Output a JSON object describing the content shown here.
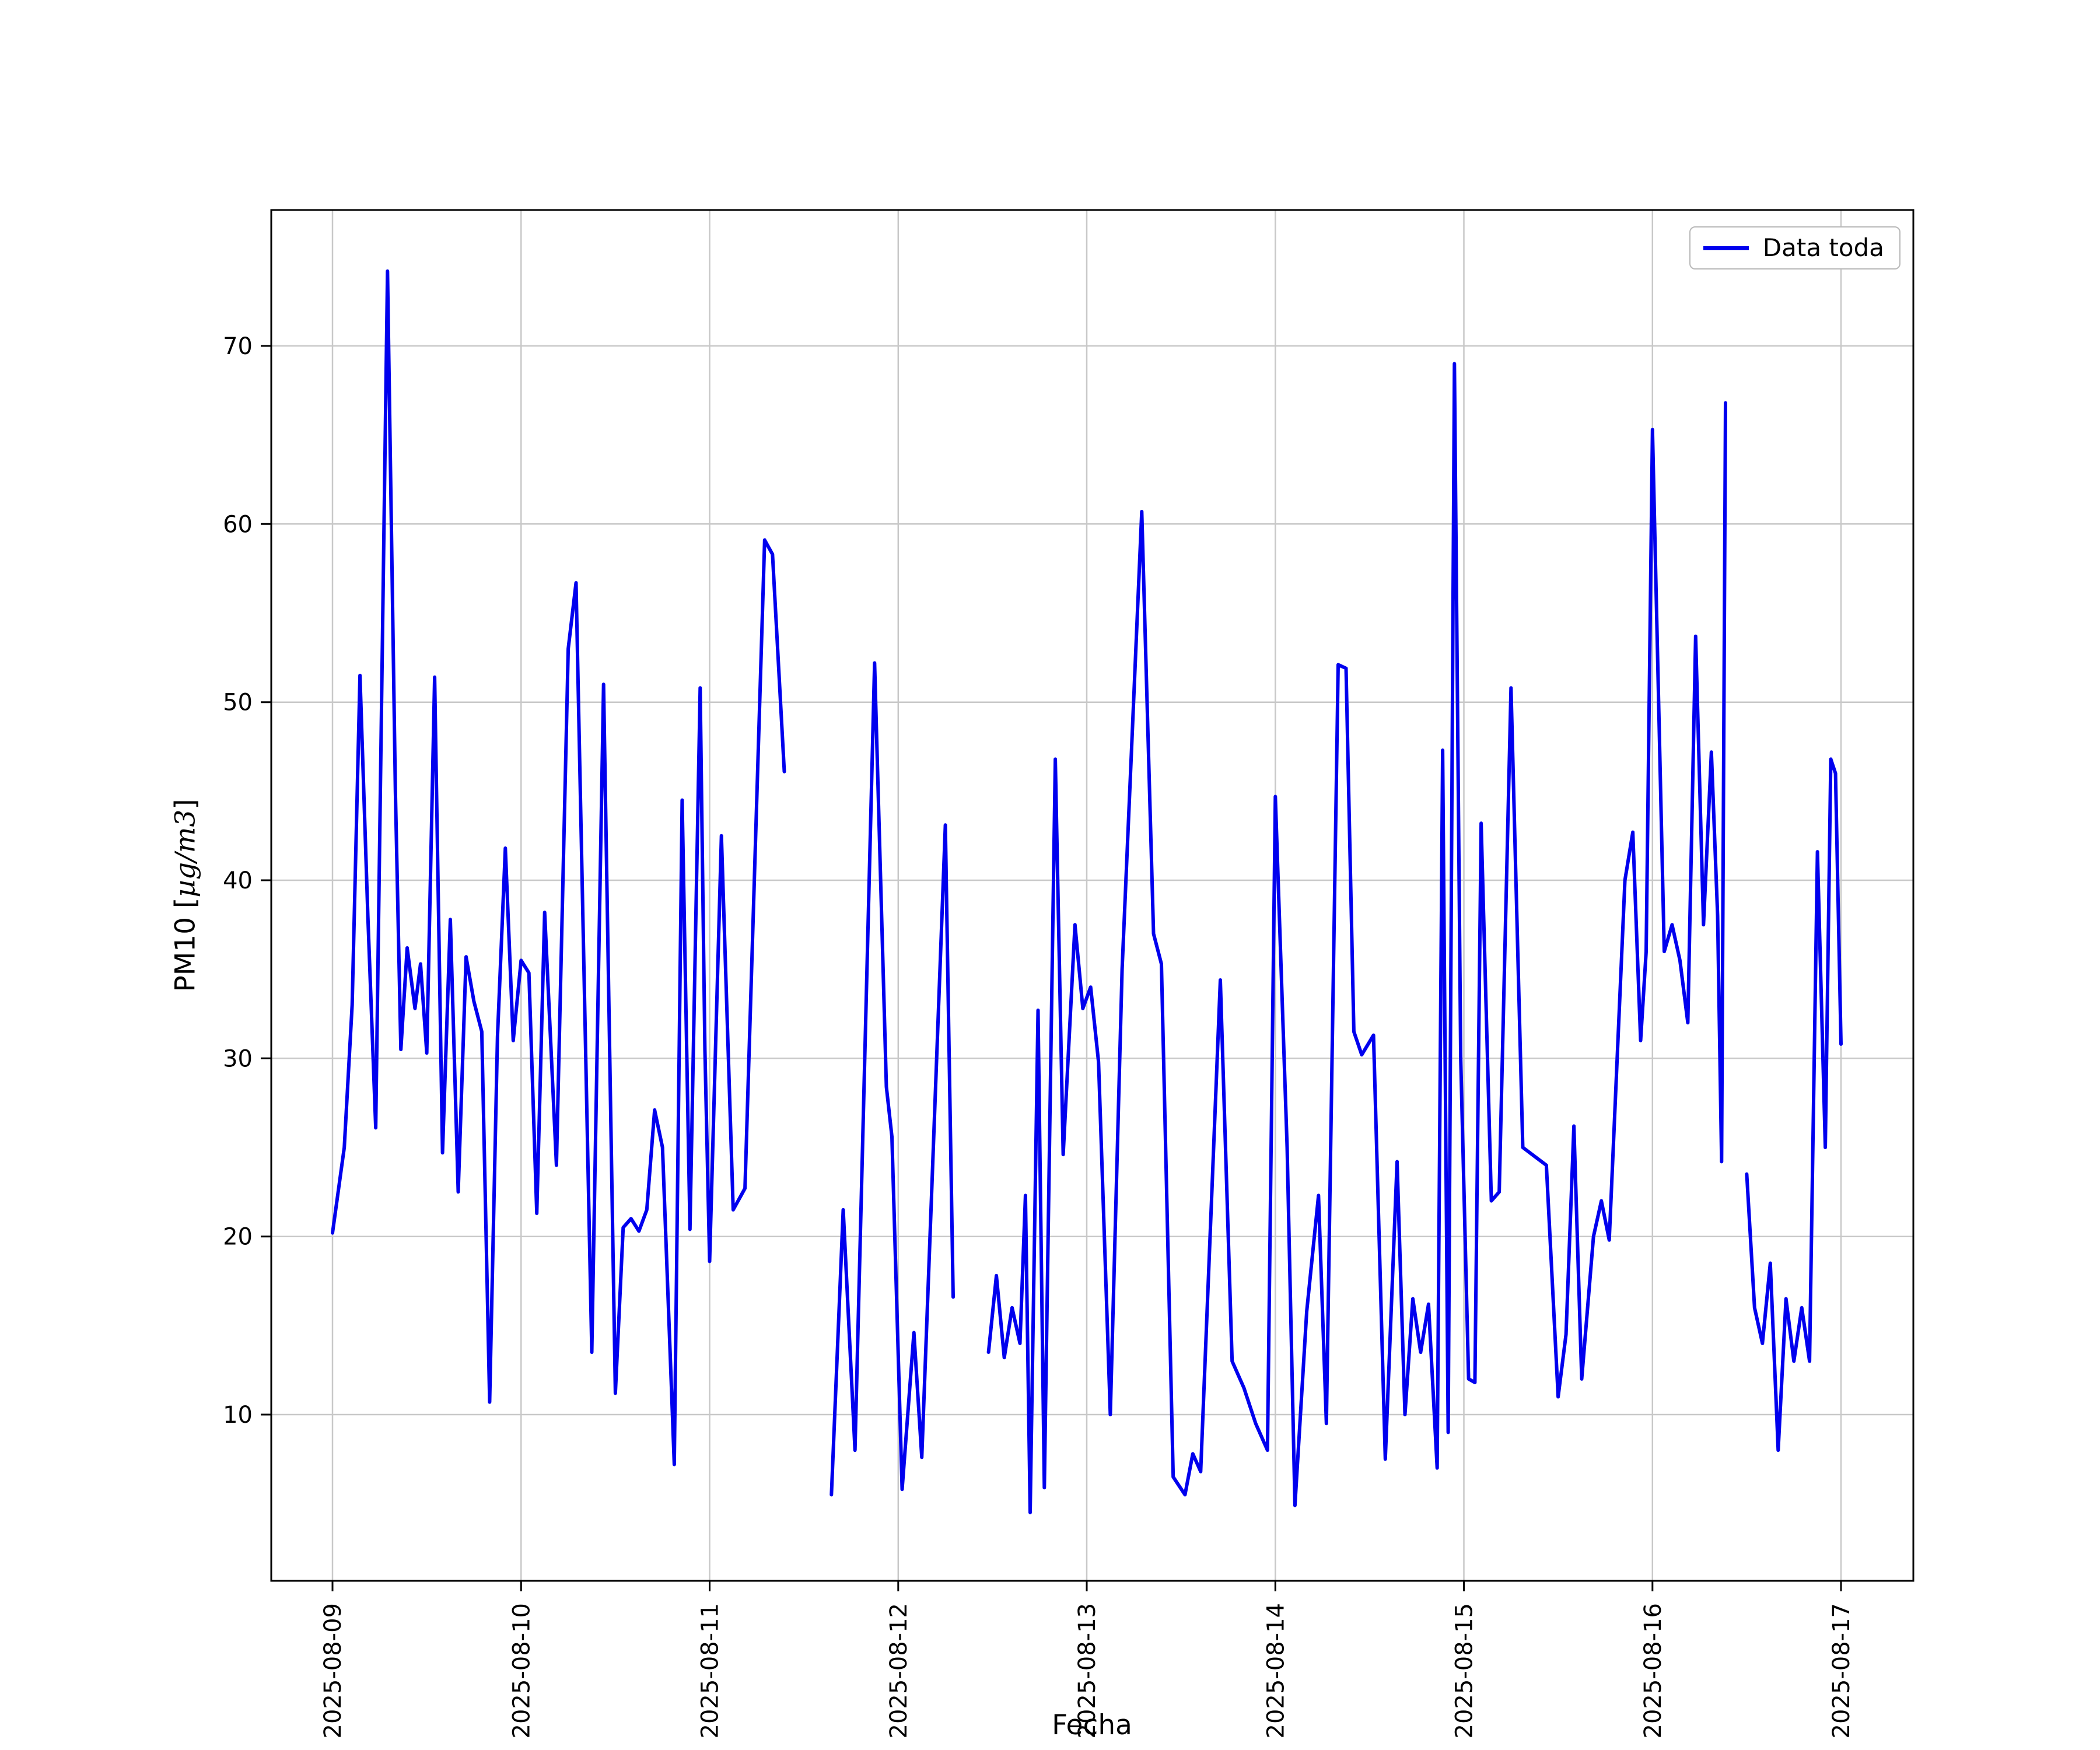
{
  "page": {
    "background": "#ffffff"
  },
  "legend": {
    "label": "Data toda"
  },
  "chart_data": {
    "type": "line",
    "title": "",
    "xlabel": "Fecha",
    "ylabel": "PM10 [µg/m3]",
    "ylabel_parts": {
      "prefix": "PM10 [",
      "math": "µg/m3",
      "suffix": "]"
    },
    "grid": true,
    "grid_color": "#c8c8c8",
    "spine_color": "#000000",
    "legend_position": "upper right",
    "x_tick_labels": [
      "2025-08-09",
      "2025-08-10",
      "2025-08-11",
      "2025-08-12",
      "2025-08-13",
      "2025-08-14",
      "2025-08-15",
      "2025-08-16",
      "2025-08-17"
    ],
    "y_tick_values": [
      10,
      20,
      30,
      40,
      50,
      60,
      70
    ],
    "ylim": [
      0.5,
      77.5
    ],
    "xlim_hours": [
      -8,
      201.5
    ],
    "x_unit": "hours since 2025-08-09 00:00",
    "series": [
      {
        "name": "Data toda",
        "color": "#0000ee",
        "points": [
          [
            0,
            20.2
          ],
          [
            1.5,
            25.0
          ],
          [
            2.5,
            33.0
          ],
          [
            3.5,
            51.5
          ],
          [
            4.5,
            38.0
          ],
          [
            5.5,
            26.1
          ],
          [
            7,
            74.2
          ],
          [
            8,
            45.0
          ],
          [
            8.7,
            30.5
          ],
          [
            9.5,
            36.2
          ],
          [
            10.5,
            32.8
          ],
          [
            11.2,
            35.3
          ],
          [
            12,
            30.3
          ],
          [
            13,
            51.4
          ],
          [
            14,
            24.7
          ],
          [
            15,
            37.8
          ],
          [
            16,
            22.5
          ],
          [
            17,
            35.7
          ],
          [
            18,
            33.2
          ],
          [
            19,
            31.5
          ],
          [
            20,
            10.7
          ],
          [
            21,
            31.2
          ],
          [
            22,
            41.8
          ],
          [
            23,
            31.0
          ],
          [
            24,
            35.5
          ],
          [
            25,
            34.8
          ],
          [
            26,
            21.3
          ],
          [
            27,
            38.2
          ],
          [
            28.5,
            24.0
          ],
          [
            30,
            53.0
          ],
          [
            31,
            56.7
          ],
          [
            33,
            13.5
          ],
          [
            34.5,
            51.0
          ],
          [
            36,
            11.2
          ],
          [
            37,
            20.5
          ],
          [
            38,
            21.0
          ],
          [
            39,
            20.3
          ],
          [
            40,
            21.5
          ],
          [
            41,
            27.1
          ],
          [
            42,
            25.0
          ],
          [
            43.5,
            7.2
          ],
          [
            44.5,
            44.5
          ],
          [
            45.5,
            20.4
          ],
          [
            46.8,
            50.8
          ],
          [
            47.4,
            30.5
          ],
          [
            48,
            18.6
          ],
          [
            49.5,
            42.5
          ],
          [
            51,
            21.5
          ],
          [
            52.5,
            22.7
          ],
          [
            55,
            59.1
          ],
          [
            56,
            58.3
          ],
          [
            57.5,
            46.1
          ],
          [
            59,
            null
          ],
          [
            63.5,
            5.5
          ],
          [
            65,
            21.5
          ],
          [
            66.5,
            8.0
          ],
          [
            69,
            52.2
          ],
          [
            70.5,
            28.4
          ],
          [
            71.2,
            25.6
          ],
          [
            72.5,
            5.8
          ],
          [
            74,
            14.6
          ],
          [
            75,
            7.6
          ],
          [
            78,
            43.1
          ],
          [
            79,
            16.6
          ],
          [
            80,
            null
          ],
          [
            83.5,
            13.5
          ],
          [
            84.5,
            17.8
          ],
          [
            85.5,
            13.2
          ],
          [
            86.5,
            16.0
          ],
          [
            87.5,
            14.0
          ],
          [
            88.2,
            22.3
          ],
          [
            88.8,
            4.5
          ],
          [
            89.8,
            32.7
          ],
          [
            90.6,
            5.9
          ],
          [
            92,
            46.8
          ],
          [
            93,
            24.6
          ],
          [
            94.5,
            37.5
          ],
          [
            95.5,
            32.8
          ],
          [
            96.5,
            34.0
          ],
          [
            97.5,
            29.8
          ],
          [
            99,
            10.0
          ],
          [
            100.5,
            35.0
          ],
          [
            103,
            60.7
          ],
          [
            104.5,
            37.0
          ],
          [
            105.5,
            35.3
          ],
          [
            107,
            6.5
          ],
          [
            108.5,
            5.5
          ],
          [
            109.5,
            7.8
          ],
          [
            110.5,
            6.8
          ],
          [
            113,
            34.4
          ],
          [
            114.5,
            13.0
          ],
          [
            116,
            11.5
          ],
          [
            117.5,
            9.5
          ],
          [
            119,
            8.0
          ],
          [
            120,
            44.7
          ],
          [
            121.5,
            25.0
          ],
          [
            122.5,
            4.9
          ],
          [
            124,
            15.8
          ],
          [
            125.5,
            22.3
          ],
          [
            126.5,
            9.5
          ],
          [
            128,
            52.1
          ],
          [
            129,
            51.9
          ],
          [
            130,
            31.5
          ],
          [
            131,
            30.2
          ],
          [
            132.5,
            31.3
          ],
          [
            134,
            7.5
          ],
          [
            135.5,
            24.2
          ],
          [
            136.5,
            10.0
          ],
          [
            137.5,
            16.5
          ],
          [
            138.5,
            13.5
          ],
          [
            139.5,
            16.2
          ],
          [
            140.6,
            7.0
          ],
          [
            141.3,
            47.3
          ],
          [
            142,
            9.0
          ],
          [
            142.8,
            69.0
          ],
          [
            143.6,
            30.0
          ],
          [
            144.6,
            12.0
          ],
          [
            145.4,
            11.8
          ],
          [
            146.2,
            43.2
          ],
          [
            147.5,
            22.0
          ],
          [
            148.5,
            22.5
          ],
          [
            150,
            50.8
          ],
          [
            151.5,
            25.0
          ],
          [
            153,
            24.5
          ],
          [
            154.5,
            24.0
          ],
          [
            156,
            11.0
          ],
          [
            157,
            14.5
          ],
          [
            158,
            26.2
          ],
          [
            159,
            12.0
          ],
          [
            160.5,
            20.0
          ],
          [
            161.5,
            22.0
          ],
          [
            162.5,
            19.8
          ],
          [
            164.5,
            40.0
          ],
          [
            165.5,
            42.7
          ],
          [
            166.5,
            31.0
          ],
          [
            167.2,
            36.0
          ],
          [
            168,
            65.3
          ],
          [
            169.5,
            36.0
          ],
          [
            170.5,
            37.5
          ],
          [
            171.5,
            35.5
          ],
          [
            172.5,
            32.0
          ],
          [
            173.5,
            53.7
          ],
          [
            174.5,
            37.5
          ],
          [
            175.5,
            47.2
          ],
          [
            176.3,
            38.0
          ],
          [
            176.8,
            24.2
          ],
          [
            177.3,
            66.8
          ],
          [
            178.3,
            null
          ],
          [
            180,
            23.5
          ],
          [
            181,
            16.0
          ],
          [
            182,
            14.0
          ],
          [
            183,
            18.5
          ],
          [
            184,
            8.0
          ],
          [
            185,
            16.5
          ],
          [
            186,
            13.0
          ],
          [
            187,
            16.0
          ],
          [
            188,
            13.0
          ],
          [
            189,
            41.6
          ],
          [
            190,
            25.0
          ],
          [
            190.7,
            46.8
          ],
          [
            191.3,
            46.0
          ],
          [
            192,
            30.8
          ]
        ]
      }
    ]
  }
}
